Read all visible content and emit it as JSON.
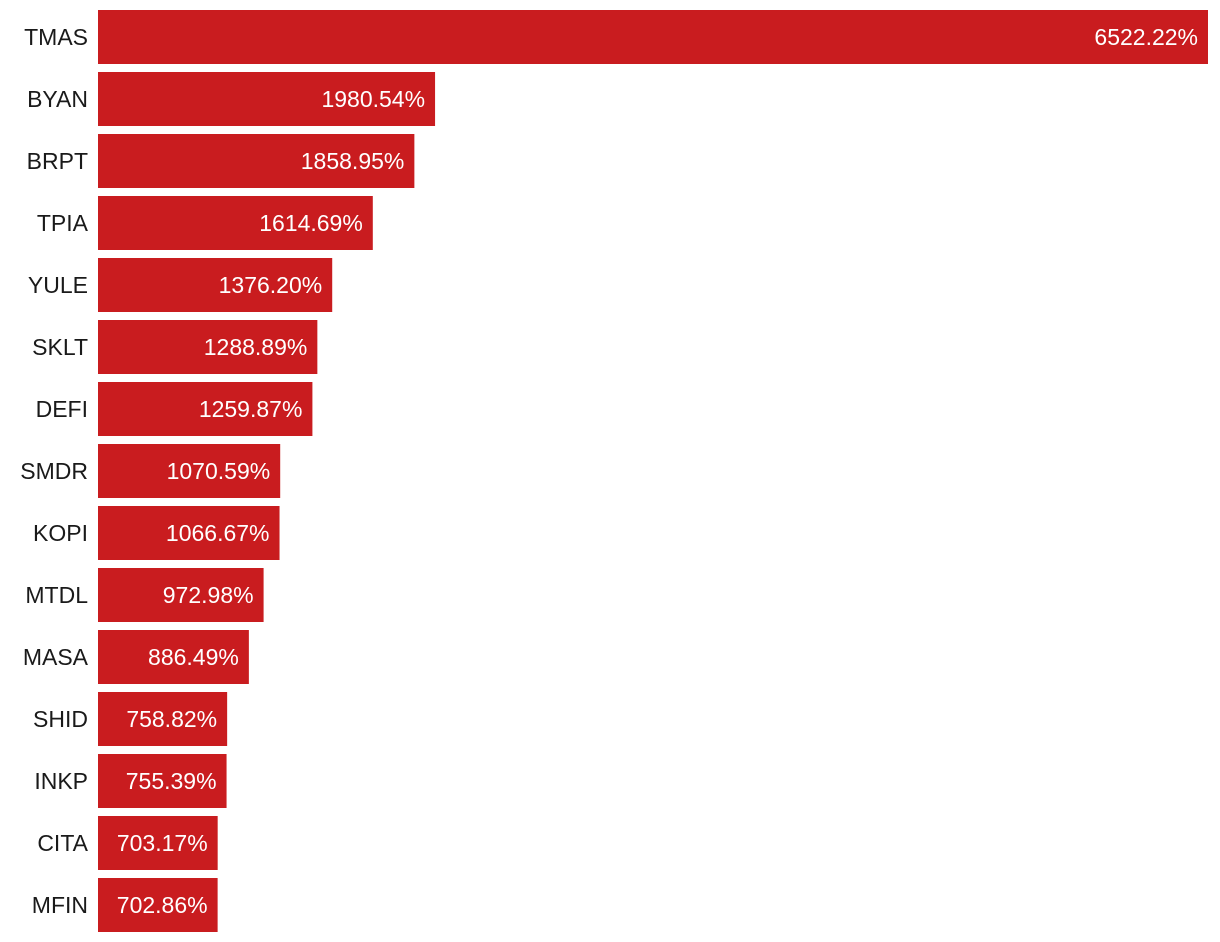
{
  "chart_data": {
    "type": "bar",
    "orientation": "horizontal",
    "title": "",
    "xlabel": "",
    "ylabel": "",
    "value_suffix": "%",
    "categories": [
      "TMAS",
      "BYAN",
      "BRPT",
      "TPIA",
      "YULE",
      "SKLT",
      "DEFI",
      "SMDR",
      "KOPI",
      "MTDL",
      "MASA",
      "SHID",
      "INKP",
      "CITA",
      "MFIN"
    ],
    "values": [
      6522.22,
      1980.54,
      1858.95,
      1614.69,
      1376.2,
      1288.89,
      1259.87,
      1070.59,
      1066.67,
      972.98,
      886.49,
      758.82,
      755.39,
      703.17,
      702.86
    ],
    "value_labels": [
      "6522.22%",
      "1980.54%",
      "1858.95%",
      "1614.69%",
      "1376.20%",
      "1288.89%",
      "1259.87%",
      "1070.59%",
      "1066.67%",
      "972.98%",
      "886.49%",
      "758.82%",
      "755.39%",
      "703.17%",
      "702.86%"
    ],
    "xlim": [
      0,
      6522.22
    ],
    "grid": false,
    "legend": "none",
    "colors": {
      "bar": "#c91c1f",
      "category_text": "#1a1a1a",
      "value_text": "#ffffff"
    }
  }
}
